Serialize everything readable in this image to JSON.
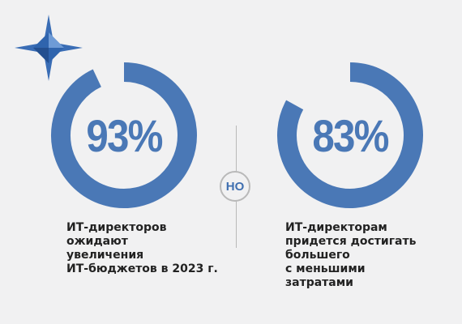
{
  "colors": {
    "accent": "#4a78b6",
    "track": "#f1f1f2",
    "text": "#222222",
    "divider": "#b9b9b9"
  },
  "logo": {
    "icon": "compass-star-icon"
  },
  "connector": {
    "label": "НО"
  },
  "chart_data": [
    {
      "type": "pie",
      "value": 93,
      "label": "93%",
      "caption": "ИТ-директоров\nожидают\nувеличения\nИТ-бюджетов в 2023 г."
    },
    {
      "type": "pie",
      "value": 83,
      "label": "83%",
      "caption": "ИТ-директорам\nпридется достигать\nбольшего\nс меньшими\nзатратами"
    }
  ]
}
